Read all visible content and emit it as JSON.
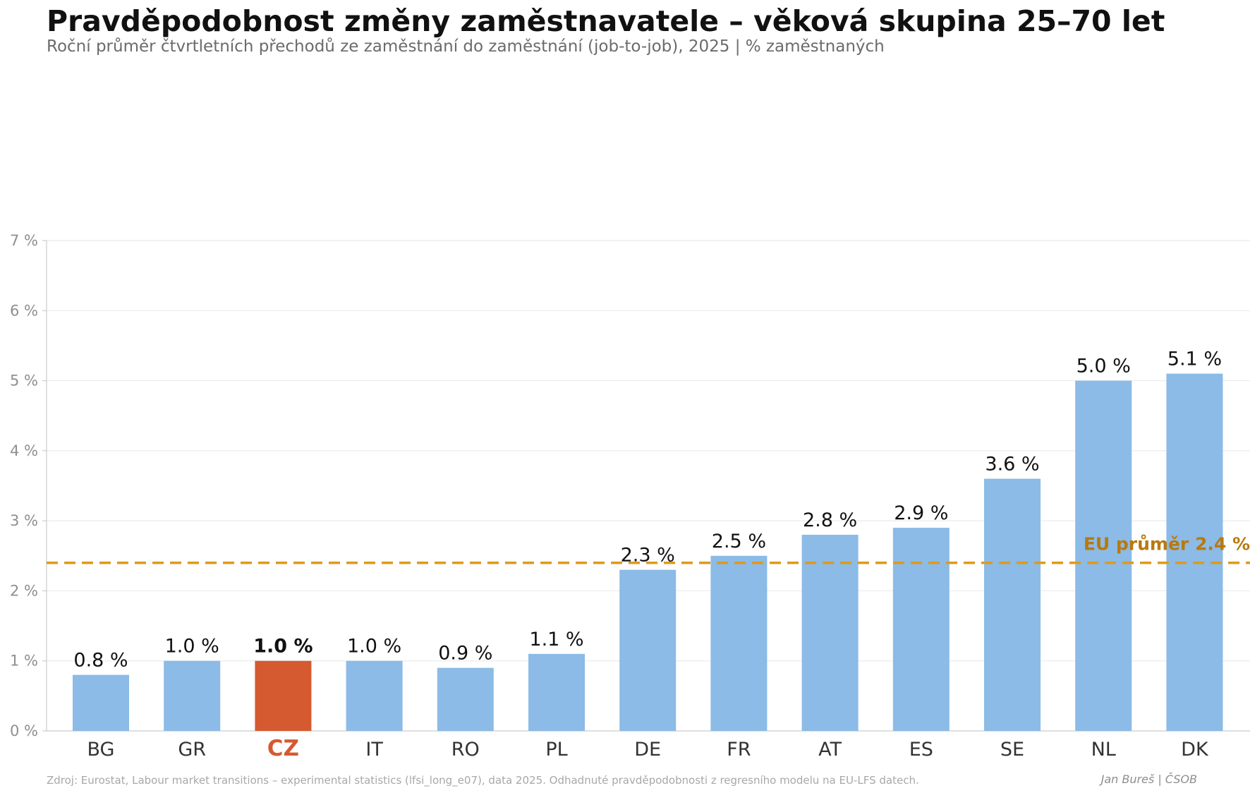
{
  "chart_data": {
    "type": "bar",
    "title": "Pravděpodobnost změny zaměstnavatele – věková skupina 25–70 let",
    "subtitle": "Roční průměr čtvrtletních přechodů ze zaměstnání do zaměstnání (job-to-job), 2025  |  % zaměstnaných",
    "categories": [
      "BG",
      "GR",
      "CZ",
      "IT",
      "RO",
      "PL",
      "DE",
      "FR",
      "AT",
      "ES",
      "SE",
      "NL",
      "DK"
    ],
    "values": [
      0.8,
      1.0,
      1.0,
      1.0,
      0.9,
      1.1,
      2.3,
      2.5,
      2.8,
      2.9,
      3.6,
      5.0,
      5.1
    ],
    "value_labels": [
      "0.8 %",
      "1.0 %",
      "1.0 %",
      "1.0 %",
      "0.9 %",
      "1.1 %",
      "2.3 %",
      "2.5 %",
      "2.8 %",
      "2.9 %",
      "3.6 %",
      "5.0 %",
      "5.1 %"
    ],
    "highlight_category": "CZ",
    "ylim": [
      0,
      7
    ],
    "yticks": [
      0,
      1,
      2,
      3,
      4,
      5,
      6,
      7
    ],
    "ytick_labels": [
      "0 %",
      "1 %",
      "2 %",
      "3 %",
      "4 %",
      "5 %",
      "6 %",
      "7 %"
    ],
    "xlabel": "",
    "ylabel": "",
    "grid": "horizontal",
    "reference_line": {
      "value": 2.4,
      "label": "EU průměr 2.4 %",
      "style": "dashed"
    },
    "colors": {
      "bar": "#8bbbe6",
      "highlight": "#d55a30",
      "reference": "#dd9a1c",
      "reference_label": "#b8790f"
    }
  },
  "footer": {
    "source": "Zdroj: Eurostat, Labour market transitions – experimental statistics (lfsi_long_e07), data 2025. Odhadnuté pravděpodobnosti z regresního modelu na EU-LFS datech.",
    "author": "Jan Bureš | ČSOB"
  }
}
